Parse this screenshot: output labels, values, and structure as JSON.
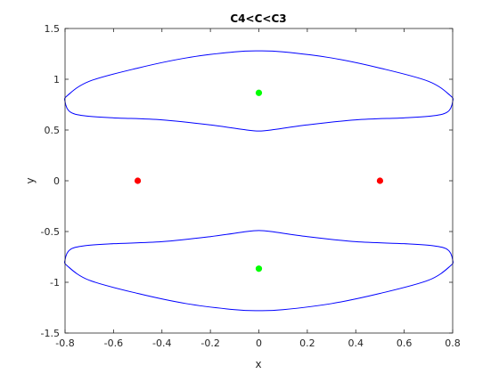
{
  "chart_data": {
    "type": "line",
    "title": "C4<C<C3",
    "xlabel": "x",
    "ylabel": "y",
    "xlim": [
      -0.8,
      0.8
    ],
    "ylim": [
      -1.5,
      1.5
    ],
    "xticks": [
      "-0.8",
      "-0.6",
      "-0.4",
      "-0.2",
      "0",
      "0.2",
      "0.4",
      "0.6",
      "0.8"
    ],
    "yticks": [
      "-1.5",
      "-1",
      "-0.5",
      "0",
      "0.5",
      "1",
      "1.5"
    ],
    "grid": false,
    "series": [
      {
        "color": "#0000ff",
        "kind": "closed-curve",
        "points": [
          [
            0.8,
            0.78
          ],
          [
            0.78,
            0.68
          ],
          [
            0.72,
            0.64
          ],
          [
            0.6,
            0.62
          ],
          [
            0.4,
            0.6
          ],
          [
            0.2,
            0.55
          ],
          [
            0.05,
            0.5
          ],
          [
            0.0,
            0.49
          ],
          [
            -0.05,
            0.5
          ],
          [
            -0.2,
            0.55
          ],
          [
            -0.4,
            0.6
          ],
          [
            -0.6,
            0.62
          ],
          [
            -0.72,
            0.64
          ],
          [
            -0.78,
            0.68
          ],
          [
            -0.8,
            0.78
          ],
          [
            -0.79,
            0.84
          ],
          [
            -0.7,
            0.98
          ],
          [
            -0.5,
            1.11
          ],
          [
            -0.3,
            1.21
          ],
          [
            -0.1,
            1.27
          ],
          [
            0.0,
            1.28
          ],
          [
            0.1,
            1.27
          ],
          [
            0.3,
            1.21
          ],
          [
            0.5,
            1.11
          ],
          [
            0.7,
            0.98
          ],
          [
            0.79,
            0.84
          ]
        ]
      },
      {
        "color": "#0000ff",
        "kind": "closed-curve",
        "points": [
          [
            0.8,
            -0.78
          ],
          [
            0.78,
            -0.68
          ],
          [
            0.72,
            -0.64
          ],
          [
            0.6,
            -0.62
          ],
          [
            0.4,
            -0.6
          ],
          [
            0.2,
            -0.55
          ],
          [
            0.05,
            -0.5
          ],
          [
            0.0,
            -0.49
          ],
          [
            -0.05,
            -0.5
          ],
          [
            -0.2,
            -0.55
          ],
          [
            -0.4,
            -0.6
          ],
          [
            -0.6,
            -0.62
          ],
          [
            -0.72,
            -0.64
          ],
          [
            -0.78,
            -0.68
          ],
          [
            -0.8,
            -0.78
          ],
          [
            -0.79,
            -0.84
          ],
          [
            -0.7,
            -0.98
          ],
          [
            -0.5,
            -1.11
          ],
          [
            -0.3,
            -1.21
          ],
          [
            -0.1,
            -1.27
          ],
          [
            0.0,
            -1.28
          ],
          [
            0.1,
            -1.27
          ],
          [
            0.3,
            -1.21
          ],
          [
            0.5,
            -1.11
          ],
          [
            0.7,
            -0.98
          ],
          [
            0.79,
            -0.84
          ]
        ]
      }
    ],
    "points": [
      {
        "x": -0.5,
        "y": 0,
        "color": "#ff0000"
      },
      {
        "x": 0.5,
        "y": 0,
        "color": "#ff0000"
      },
      {
        "x": 0,
        "y": 0.866,
        "color": "#00ff00"
      },
      {
        "x": 0,
        "y": -0.866,
        "color": "#00ff00"
      }
    ]
  }
}
